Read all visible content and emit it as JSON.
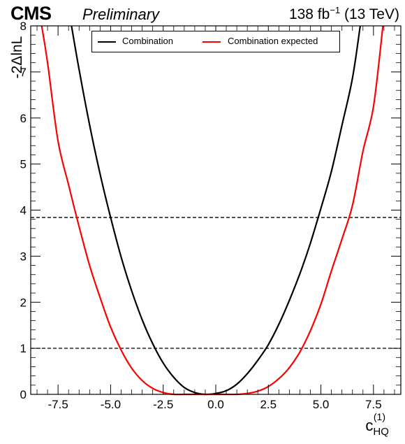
{
  "header": {
    "experiment": "CMS",
    "status": "Preliminary",
    "lumi_value": "138 fb",
    "lumi_exp": "−1",
    "energy": "(13 TeV)"
  },
  "chart_data": {
    "type": "line",
    "xlabel_main": "c",
    "xlabel_sub": "HQ",
    "xlabel_sup": "(1)",
    "ylabel": "-2ΔlnL",
    "xlim": [
      -8.8,
      8.8
    ],
    "ylim": [
      0,
      8
    ],
    "xticks": [
      -7.5,
      -5.0,
      -2.5,
      0.0,
      2.5,
      5.0,
      7.5
    ],
    "xtick_labels": [
      "-7.5",
      "-5.0",
      "-2.5",
      "0.0",
      "2.5",
      "5.0",
      "7.5"
    ],
    "yticks": [
      0,
      1,
      2,
      3,
      4,
      5,
      6,
      7,
      8
    ],
    "ytick_labels": [
      "0",
      "1",
      "2",
      "3",
      "4",
      "5",
      "6",
      "7",
      "8"
    ],
    "reference_lines": [
      1.0,
      3.84
    ],
    "legend_position": "top",
    "series": [
      {
        "name": "Combination",
        "color": "#000000",
        "x": [
          -6.86,
          -6.5,
          -6.0,
          -5.5,
          -5.0,
          -4.5,
          -4.0,
          -3.5,
          -3.0,
          -2.5,
          -2.0,
          -1.5,
          -1.0,
          -0.5,
          0.0,
          0.5,
          1.0,
          1.5,
          2.0,
          2.5,
          3.0,
          3.5,
          4.0,
          4.5,
          5.0,
          5.5,
          6.0,
          6.5,
          6.87
        ],
        "y": [
          8.0,
          7.05,
          5.85,
          4.78,
          3.84,
          2.98,
          2.25,
          1.62,
          1.1,
          0.68,
          0.37,
          0.15,
          0.04,
          0.0,
          0.02,
          0.08,
          0.22,
          0.45,
          0.74,
          1.08,
          1.52,
          2.04,
          2.62,
          3.28,
          4.04,
          4.84,
          5.84,
          6.86,
          8.0
        ]
      },
      {
        "name": "Combination expected",
        "color": "#ff0000",
        "x": [
          -8.28,
          -8.0,
          -7.5,
          -7.0,
          -6.5,
          -6.0,
          -5.5,
          -5.0,
          -4.5,
          -4.0,
          -3.5,
          -3.0,
          -2.5,
          -2.0,
          -1.5,
          -1.0,
          -0.5,
          0.0,
          0.5,
          1.0,
          1.5,
          2.0,
          2.5,
          3.0,
          3.5,
          4.0,
          4.5,
          5.0,
          5.5,
          6.0,
          6.5,
          7.0,
          7.5,
          7.95
        ],
        "y": [
          8.0,
          7.2,
          5.5,
          4.55,
          3.64,
          2.8,
          2.1,
          1.46,
          0.96,
          0.57,
          0.3,
          0.13,
          0.04,
          0.0,
          0.0,
          0.0,
          0.0,
          0.0,
          0.0,
          0.0,
          0.02,
          0.07,
          0.17,
          0.34,
          0.58,
          0.92,
          1.38,
          1.96,
          2.68,
          3.37,
          4.1,
          5.28,
          6.25,
          8.0
        ]
      }
    ]
  }
}
